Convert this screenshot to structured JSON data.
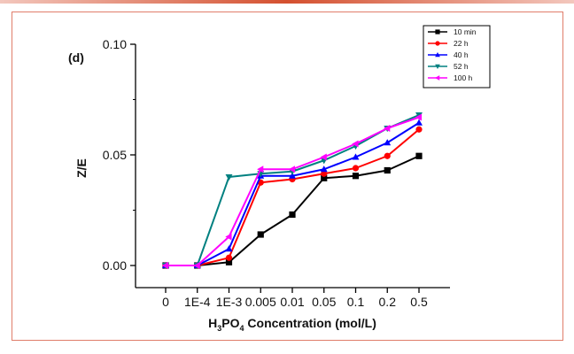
{
  "figure": {
    "panel_label": "(d)"
  },
  "chart_data": {
    "type": "line",
    "title": "",
    "xlabel": "H3PO4 Concentration (mol/L)",
    "xlabel_parts": {
      "pre": "H",
      "sub1": "3",
      "mid": "PO",
      "sub2": "4",
      "post": " Concentration (mol/L)"
    },
    "ylabel": "Z/E",
    "categories": [
      "0",
      "1E-4",
      "1E-3",
      "0.005",
      "0.01",
      "0.05",
      "0.1",
      "0.2",
      "0.5"
    ],
    "ylim": [
      -0.01,
      0.1
    ],
    "yticks": [
      {
        "value": 0.0,
        "label": "0.00"
      },
      {
        "value": 0.05,
        "label": "0.05"
      },
      {
        "value": 0.1,
        "label": "0.10"
      }
    ],
    "series": [
      {
        "name": "10 min",
        "color": "#000000",
        "marker": "square",
        "values": [
          0.0,
          0.0,
          0.0015,
          0.014,
          0.023,
          0.0395,
          0.0405,
          0.043,
          0.0495
        ]
      },
      {
        "name": "22 h",
        "color": "#ff0000",
        "marker": "circle",
        "values": [
          0.0,
          0.0,
          0.0035,
          0.0375,
          0.039,
          0.0415,
          0.044,
          0.0495,
          0.0615
        ]
      },
      {
        "name": "40 h",
        "color": "#0000ff",
        "marker": "triangle-up",
        "values": [
          0.0,
          0.0,
          0.0075,
          0.0405,
          0.0405,
          0.0435,
          0.049,
          0.0555,
          0.0645
        ]
      },
      {
        "name": "52 h",
        "color": "#008080",
        "marker": "triangle-down",
        "values": [
          0.0,
          0.0,
          0.04,
          0.0415,
          0.0425,
          0.0475,
          0.054,
          0.062,
          0.068
        ]
      },
      {
        "name": "100 h",
        "color": "#ff00ff",
        "marker": "triangle-left",
        "values": [
          0.0,
          0.0,
          0.013,
          0.0435,
          0.0435,
          0.049,
          0.055,
          0.062,
          0.067
        ]
      }
    ]
  }
}
